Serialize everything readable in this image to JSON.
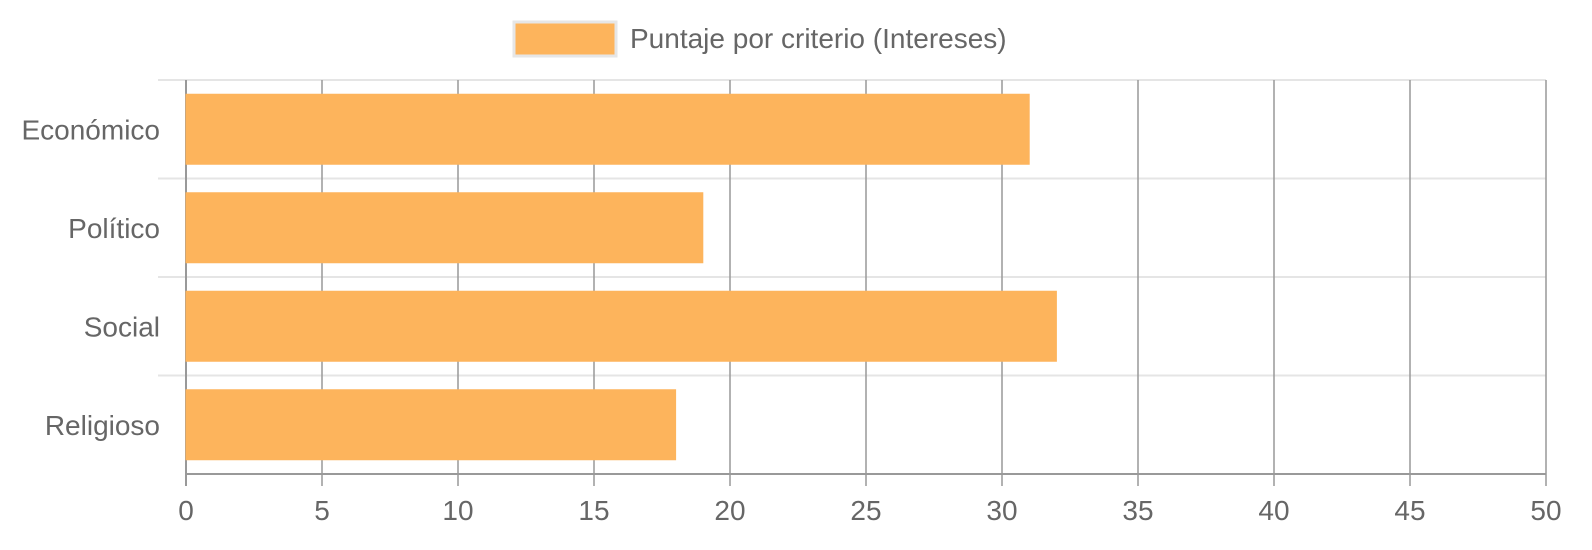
{
  "chart_data": {
    "type": "bar",
    "orientation": "horizontal",
    "categories": [
      "Económico",
      "Político",
      "Social",
      "Religioso"
    ],
    "series": [
      {
        "name": "Puntaje por criterio (Intereses)",
        "values": [
          31,
          19,
          32,
          18
        ]
      }
    ],
    "xlim": [
      0,
      50
    ],
    "x_ticks": [
      "0",
      "5",
      "10",
      "15",
      "20",
      "25",
      "30",
      "35",
      "40",
      "45",
      "50"
    ],
    "grid": true,
    "legend_position": "top-center",
    "colors": {
      "bar": "#fdb45c",
      "bar_border": "#fdb45c",
      "grid_vertical": "#999999",
      "grid_horizontal": "#e5e5e5",
      "text": "#666666"
    }
  }
}
